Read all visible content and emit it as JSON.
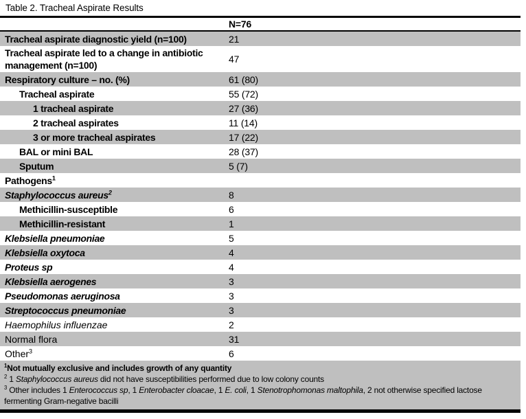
{
  "title": "Table 2. Tracheal Aspirate Results",
  "colors": {
    "row_shade": "#bfbfbf",
    "footnote_shade": "#bfbfbf",
    "border": "#000000"
  },
  "table": {
    "header": {
      "label": "",
      "value_label": "N=76"
    },
    "rows": [
      {
        "label": "Tracheal aspirate diagnostic yield (n=100)",
        "sup": "",
        "value": "21",
        "indent": 0,
        "style": "bold",
        "shaded": true
      },
      {
        "label": "Tracheal aspirate led to a change in antibiotic management (n=100)",
        "sup": "",
        "value": "47",
        "indent": 0,
        "style": "bold",
        "shaded": false
      },
      {
        "label": "Respiratory culture – no. (%)",
        "sup": "",
        "value": "61 (80)",
        "indent": 0,
        "style": "bold",
        "shaded": true
      },
      {
        "label": "Tracheal aspirate",
        "sup": "",
        "value": "55 (72)",
        "indent": 1,
        "style": "bold",
        "shaded": false
      },
      {
        "label": "1 tracheal aspirate",
        "sup": "",
        "value": "27 (36)",
        "indent": 2,
        "style": "bold",
        "shaded": true
      },
      {
        "label": "2 tracheal aspirates",
        "sup": "",
        "value": "11 (14)",
        "indent": 2,
        "style": "bold",
        "shaded": false
      },
      {
        "label": "3 or more tracheal aspirates",
        "sup": "",
        "value": "17 (22)",
        "indent": 2,
        "style": "bold",
        "shaded": true
      },
      {
        "label": "BAL or mini BAL",
        "sup": "",
        "value": "28 (37)",
        "indent": 1,
        "style": "bold",
        "shaded": false
      },
      {
        "label": "Sputum",
        "sup": "",
        "value": "5 (7)",
        "indent": 1,
        "style": "bold",
        "shaded": true
      },
      {
        "label": "Pathogens",
        "sup": "1",
        "value": "",
        "indent": 0,
        "style": "bold",
        "shaded": false
      },
      {
        "label": "Staphylococcus aureus",
        "sup": "2",
        "value": "8",
        "indent": 0,
        "style": "bold-italic",
        "shaded": true
      },
      {
        "label": "Methicillin-susceptible",
        "sup": "",
        "value": "6",
        "indent": 1,
        "style": "bold",
        "shaded": false
      },
      {
        "label": "Methicillin-resistant",
        "sup": "",
        "value": "1",
        "indent": 1,
        "style": "bold",
        "shaded": true
      },
      {
        "label": "Klebsiella pneumoniae",
        "sup": "",
        "value": "5",
        "indent": 0,
        "style": "bold-italic",
        "shaded": false
      },
      {
        "label": "Klebsiella oxytoca",
        "sup": "",
        "value": "4",
        "indent": 0,
        "style": "bold-italic",
        "shaded": true
      },
      {
        "label": "Proteus sp",
        "sup": "",
        "value": "4",
        "indent": 0,
        "style": "bold-italic",
        "shaded": false
      },
      {
        "label": "Klebsiella aerogenes",
        "sup": "",
        "value": "3",
        "indent": 0,
        "style": "bold-italic",
        "shaded": true
      },
      {
        "label": "Pseudomonas aeruginosa",
        "sup": "",
        "value": "3",
        "indent": 0,
        "style": "bold-italic",
        "shaded": false
      },
      {
        "label": "Streptococcus pneumoniae",
        "sup": "",
        "value": "3",
        "indent": 0,
        "style": "bold-italic",
        "shaded": true
      },
      {
        "label": "Haemophilus influenzae",
        "sup": "",
        "value": "2",
        "indent": 0,
        "style": "italic",
        "shaded": false
      },
      {
        "label": "Normal flora",
        "sup": "",
        "value": "31",
        "indent": 0,
        "style": "regular",
        "shaded": true
      },
      {
        "label": "Other",
        "sup": "3",
        "value": "6",
        "indent": 0,
        "style": "regular",
        "shaded": false
      }
    ],
    "footnotes": [
      {
        "sup": "1",
        "bold": true,
        "segments": [
          {
            "text": "Not mutually exclusive and includes growth of any quantity",
            "italic": false
          }
        ]
      },
      {
        "sup": "2",
        "bold": false,
        "segments": [
          {
            "text": " 1 ",
            "italic": false
          },
          {
            "text": "Staphylococcus aureus",
            "italic": true
          },
          {
            "text": " did not have susceptibilities performed due to low colony counts",
            "italic": false
          }
        ]
      },
      {
        "sup": "3",
        "bold": false,
        "segments": [
          {
            "text": " Other includes 1 ",
            "italic": false
          },
          {
            "text": "Enterococcus sp",
            "italic": true
          },
          {
            "text": ", 1 ",
            "italic": false
          },
          {
            "text": "Enterobacter cloacae",
            "italic": true
          },
          {
            "text": ", 1 ",
            "italic": false
          },
          {
            "text": "E. coli",
            "italic": true
          },
          {
            "text": ", 1 ",
            "italic": false
          },
          {
            "text": "Stenotrophomonas maltophila",
            "italic": true
          },
          {
            "text": ",  2 not otherwise specified lactose fermenting Gram-negative bacilli",
            "italic": false
          }
        ]
      }
    ]
  }
}
